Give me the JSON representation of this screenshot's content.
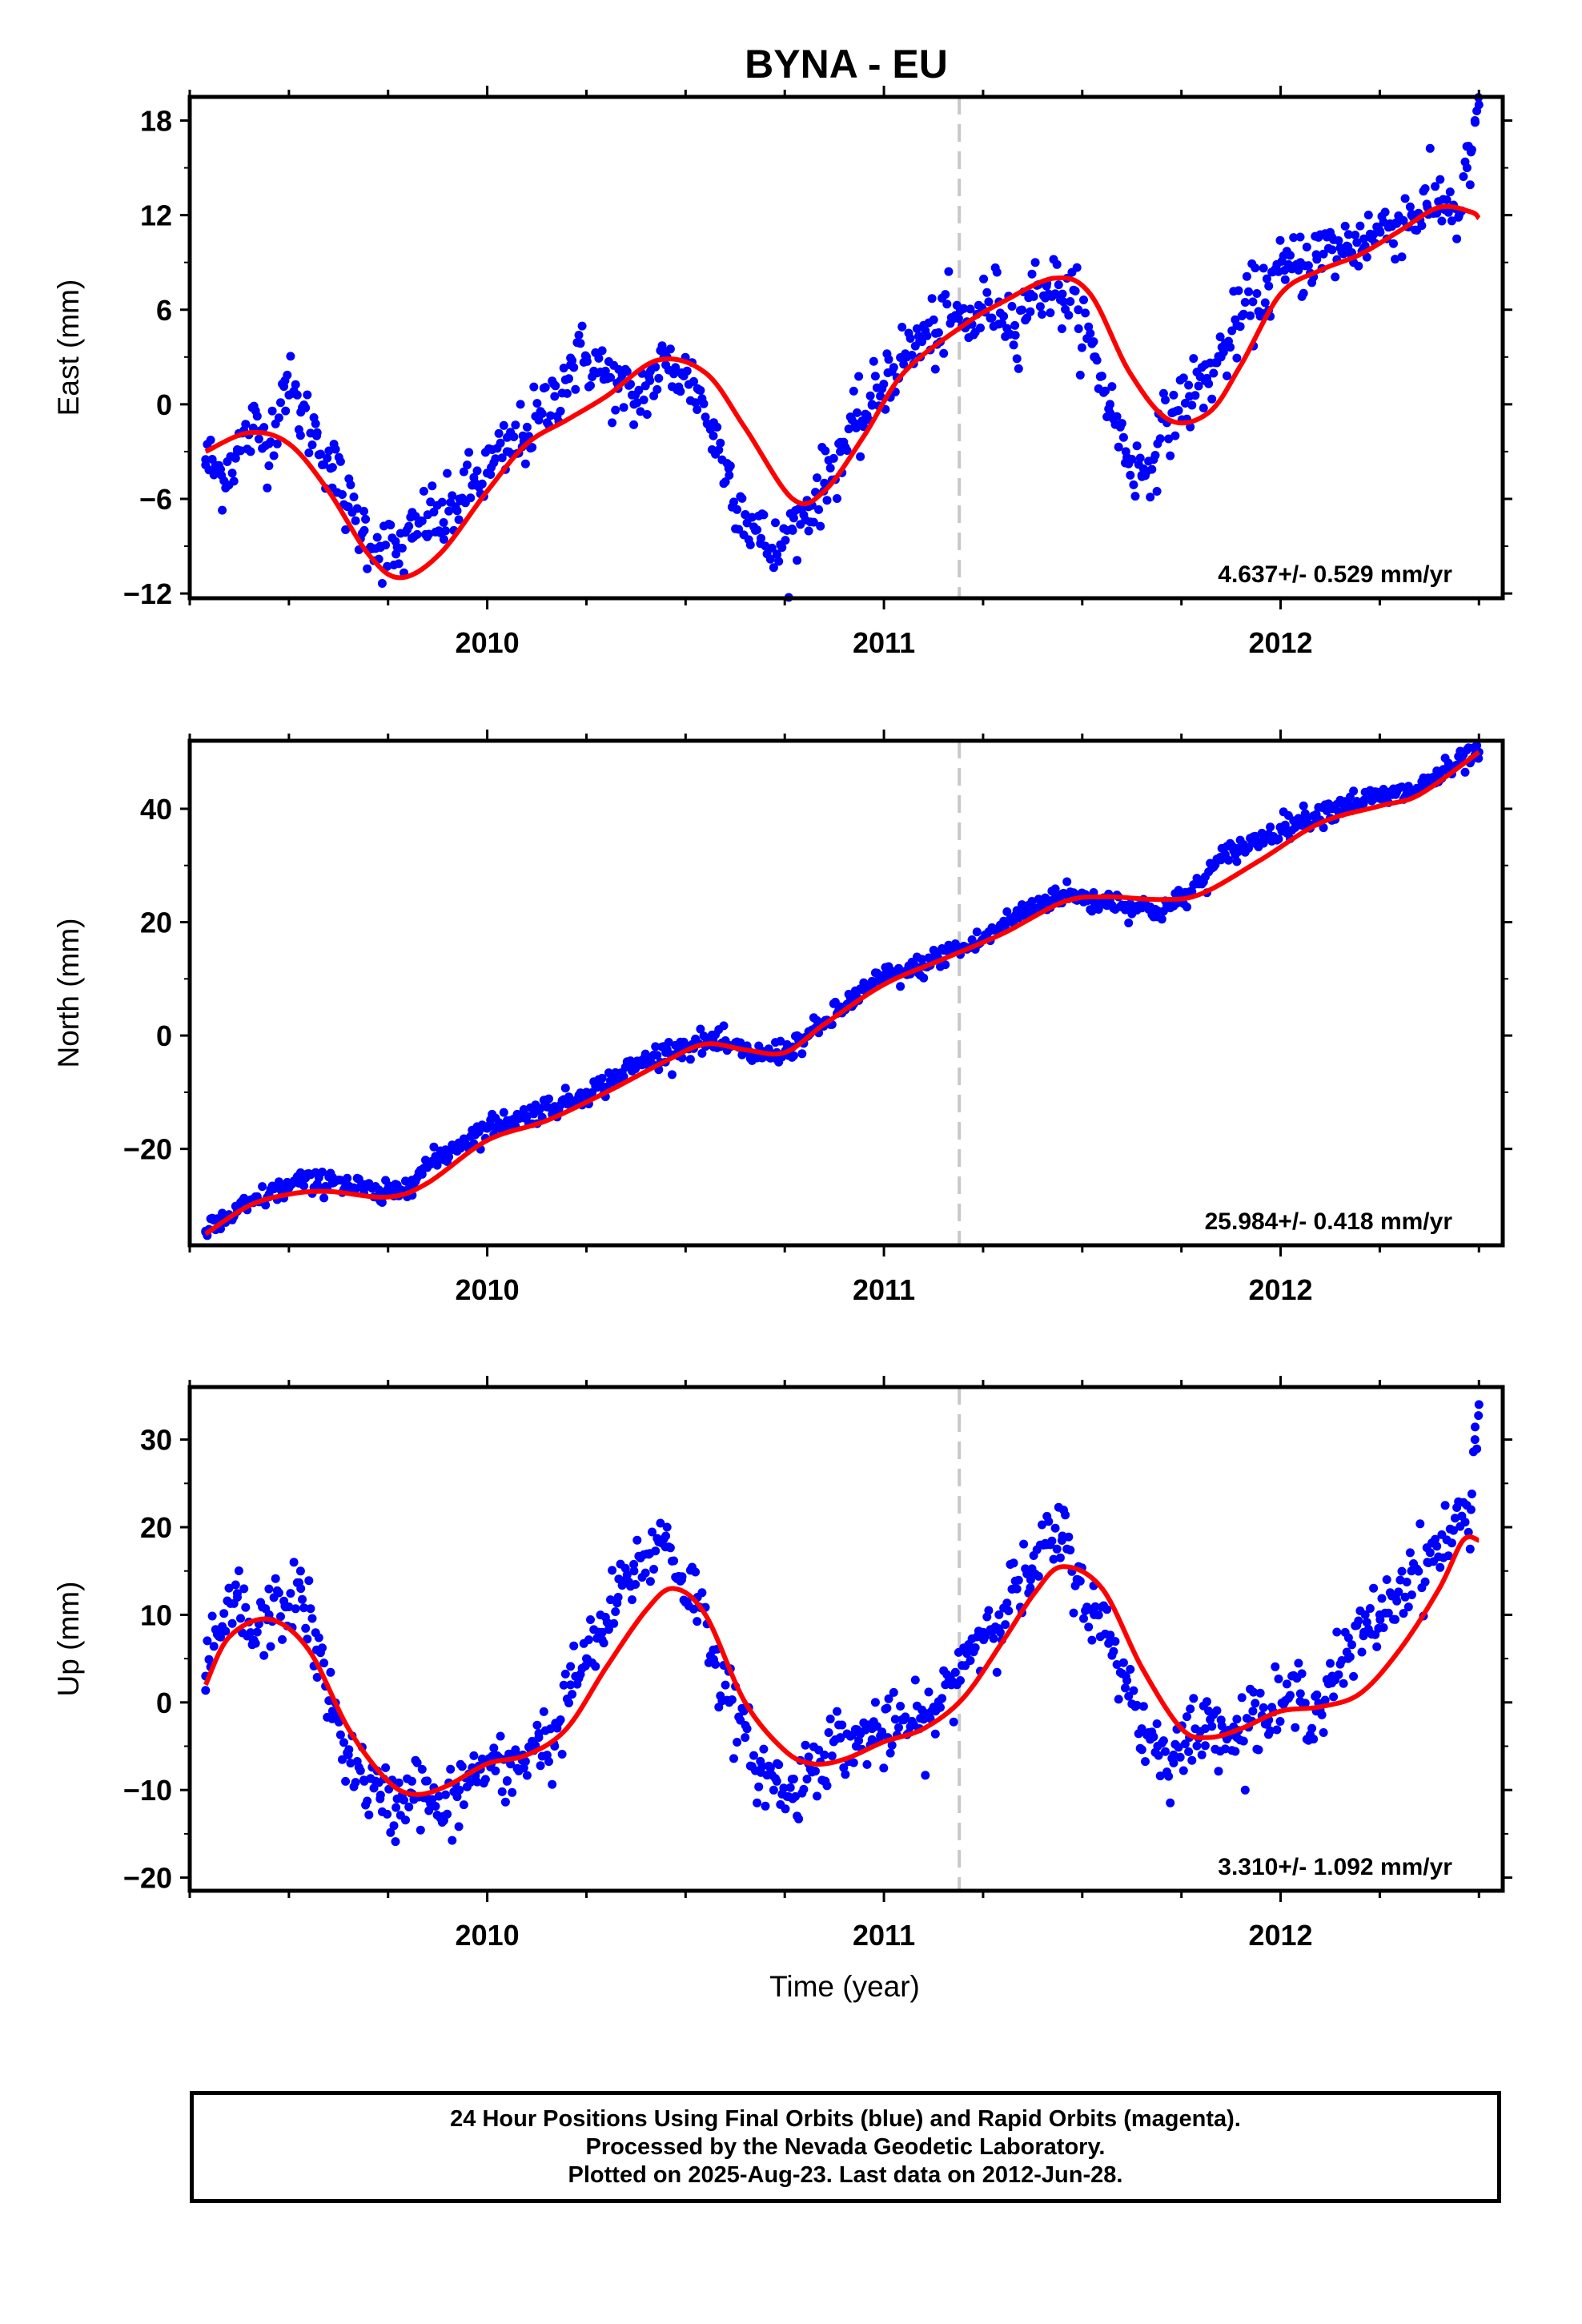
{
  "figure": {
    "title": "BYNA - EU",
    "x_axis_label": "Time (year)",
    "colors": {
      "data": "#0000ff",
      "model": "#ff0000",
      "marker_line": "#c8c8c8",
      "frame": "#000000"
    }
  },
  "chart_data": [
    {
      "type": "scatter",
      "component": "East",
      "ylabel": "East (mm)",
      "xlim": [
        2009.25,
        2012.56
      ],
      "ylim": [
        -12.3,
        19.5
      ],
      "yticks": [
        -12,
        -6,
        0,
        6,
        12,
        18
      ],
      "xticks": [
        2010,
        2011,
        2012
      ],
      "vertical_marker_x": 2011.19,
      "rate_label": "4.637+/- 0.529 mm/yr",
      "series": [
        {
          "kind": "points",
          "x": [
            2009.29,
            2009.33,
            2009.37,
            2009.41,
            2009.45,
            2009.49,
            2009.53,
            2009.57,
            2009.61,
            2009.65,
            2009.69,
            2009.73,
            2009.77,
            2009.81,
            2009.85,
            2009.89,
            2009.93,
            2009.97,
            2010.01,
            2010.05,
            2010.09,
            2010.13,
            2010.17,
            2010.21,
            2010.25,
            2010.29,
            2010.33,
            2010.37,
            2010.41,
            2010.45,
            2010.49,
            2010.53,
            2010.57,
            2010.61,
            2010.65,
            2010.69,
            2010.73,
            2010.77,
            2010.81,
            2010.85,
            2010.89,
            2010.93,
            2010.97,
            2011.01,
            2011.05,
            2011.09,
            2011.13,
            2011.17,
            2011.21,
            2011.25,
            2011.29,
            2011.33,
            2011.37,
            2011.41,
            2011.45,
            2011.49,
            2011.53,
            2011.57,
            2011.61,
            2011.65,
            2011.69,
            2011.73,
            2011.77,
            2011.81,
            2011.85,
            2011.89,
            2011.93,
            2011.97,
            2012.01,
            2012.05,
            2012.09,
            2012.13,
            2012.17,
            2012.21,
            2012.25,
            2012.29,
            2012.33,
            2012.37,
            2012.41,
            2012.45,
            2012.47,
            2012.48,
            2012.49,
            2012.5
          ],
          "y": [
            -3.5,
            -4.5,
            -3.0,
            -1.5,
            -2.5,
            1.5,
            -0.5,
            -2.0,
            -4.0,
            -6.5,
            -8.0,
            -9.0,
            -9.5,
            -8.5,
            -7.0,
            -7.5,
            -6.0,
            -5.0,
            -4.0,
            -3.0,
            -2.0,
            -1.0,
            0.5,
            2.5,
            3.0,
            2.0,
            1.0,
            0.0,
            1.5,
            2.5,
            2.0,
            1.0,
            -2.0,
            -4.5,
            -7.0,
            -8.5,
            -9.5,
            -8.0,
            -6.5,
            -5.0,
            -3.0,
            -1.5,
            0.0,
            2.0,
            3.0,
            4.0,
            4.5,
            5.5,
            5.0,
            6.0,
            6.5,
            5.0,
            7.0,
            7.5,
            7.0,
            6.0,
            3.0,
            0.0,
            -3.0,
            -4.5,
            -2.5,
            -0.5,
            0.5,
            1.5,
            3.0,
            5.0,
            6.5,
            7.5,
            8.5,
            9.0,
            9.5,
            9.8,
            10.0,
            10.5,
            11.0,
            11.5,
            12.0,
            12.5,
            13.0,
            12.0,
            15.0,
            16.0,
            18.0,
            19.0
          ]
        },
        {
          "kind": "model",
          "x": [
            2009.29,
            2009.4,
            2009.5,
            2009.6,
            2009.7,
            2009.78,
            2009.88,
            2010.0,
            2010.1,
            2010.2,
            2010.3,
            2010.43,
            2010.55,
            2010.65,
            2010.77,
            2010.85,
            2010.95,
            2011.05,
            2011.2,
            2011.3,
            2011.43,
            2011.52,
            2011.62,
            2011.72,
            2011.82,
            2011.9,
            2012.0,
            2012.1,
            2012.2,
            2012.3,
            2012.4,
            2012.48,
            2012.5
          ],
          "y": [
            -3.0,
            -1.8,
            -2.5,
            -5.5,
            -9.5,
            -11.0,
            -9.5,
            -5.5,
            -2.5,
            -1.0,
            0.5,
            2.8,
            2.0,
            -1.5,
            -6.0,
            -5.5,
            -2.0,
            2.0,
            5.0,
            6.5,
            8.0,
            7.0,
            2.0,
            -1.0,
            -0.5,
            2.5,
            7.0,
            8.5,
            9.5,
            11.0,
            12.5,
            12.2,
            11.8
          ]
        }
      ]
    },
    {
      "type": "scatter",
      "component": "North",
      "ylabel": "North (mm)",
      "xlim": [
        2009.25,
        2012.56
      ],
      "ylim": [
        -37.0,
        52.0
      ],
      "yticks": [
        -20,
        0,
        20,
        40
      ],
      "xticks": [
        2010,
        2011,
        2012
      ],
      "vertical_marker_x": 2011.19,
      "rate_label": "25.984+/- 0.418 mm/yr",
      "series": [
        {
          "kind": "points",
          "x": [
            2009.29,
            2009.33,
            2009.37,
            2009.41,
            2009.45,
            2009.49,
            2009.53,
            2009.57,
            2009.61,
            2009.65,
            2009.69,
            2009.73,
            2009.77,
            2009.81,
            2009.85,
            2009.89,
            2009.93,
            2009.97,
            2010.01,
            2010.05,
            2010.09,
            2010.13,
            2010.17,
            2010.21,
            2010.25,
            2010.29,
            2010.33,
            2010.37,
            2010.41,
            2010.45,
            2010.49,
            2010.53,
            2010.57,
            2010.61,
            2010.65,
            2010.69,
            2010.73,
            2010.77,
            2010.81,
            2010.85,
            2010.89,
            2010.93,
            2010.97,
            2011.01,
            2011.05,
            2011.09,
            2011.13,
            2011.17,
            2011.21,
            2011.25,
            2011.29,
            2011.33,
            2011.37,
            2011.41,
            2011.45,
            2011.49,
            2011.53,
            2011.57,
            2011.61,
            2011.65,
            2011.69,
            2011.73,
            2011.77,
            2011.81,
            2011.85,
            2011.89,
            2011.93,
            2011.97,
            2012.01,
            2012.05,
            2012.09,
            2012.13,
            2012.17,
            2012.21,
            2012.25,
            2012.29,
            2012.33,
            2012.49,
            2012.5
          ],
          "y": [
            -34.5,
            -33.0,
            -31.0,
            -29.5,
            -28.0,
            -27.0,
            -25.5,
            -26.5,
            -25.0,
            -26.5,
            -27.0,
            -28.5,
            -27.5,
            -25.5,
            -23.0,
            -21.0,
            -19.0,
            -17.5,
            -16.0,
            -15.0,
            -14.5,
            -13.0,
            -12.5,
            -11.5,
            -10.0,
            -9.0,
            -7.0,
            -5.5,
            -4.0,
            -3.0,
            -2.0,
            -1.5,
            -1.0,
            -2.0,
            -3.0,
            -3.5,
            -3.0,
            -2.0,
            0.0,
            2.0,
            4.5,
            7.0,
            9.0,
            10.5,
            11.0,
            12.0,
            13.5,
            15.0,
            15.5,
            17.0,
            19.0,
            21.0,
            22.5,
            24.0,
            25.0,
            24.5,
            23.5,
            24.0,
            23.0,
            22.5,
            22.0,
            23.0,
            25.0,
            28.0,
            31.0,
            33.0,
            34.0,
            35.5,
            37.0,
            38.0,
            39.0,
            40.0,
            41.0,
            41.5,
            42.0,
            42.5,
            43.0,
            49.5,
            50.0
          ]
        },
        {
          "kind": "model",
          "x": [
            2009.29,
            2009.4,
            2009.5,
            2009.6,
            2009.75,
            2009.85,
            2010.0,
            2010.15,
            2010.3,
            2010.45,
            2010.55,
            2010.65,
            2010.75,
            2010.85,
            2011.0,
            2011.15,
            2011.3,
            2011.45,
            2011.55,
            2011.7,
            2011.8,
            2011.95,
            2012.1,
            2012.25,
            2012.35,
            2012.5
          ],
          "y": [
            -35.0,
            -30.0,
            -28.0,
            -27.5,
            -28.5,
            -26.0,
            -18.5,
            -15.0,
            -10.0,
            -4.5,
            -1.5,
            -2.5,
            -3.0,
            2.0,
            9.0,
            13.5,
            18.0,
            23.5,
            24.5,
            24.0,
            25.0,
            31.0,
            37.5,
            40.5,
            42.5,
            50.0
          ]
        }
      ]
    },
    {
      "type": "scatter",
      "component": "Up",
      "ylabel": "Up (mm)",
      "xlim": [
        2009.25,
        2012.56
      ],
      "ylim": [
        -21.5,
        36.0
      ],
      "yticks": [
        -20,
        -10,
        0,
        10,
        20,
        30
      ],
      "xticks": [
        2010,
        2011,
        2012
      ],
      "vertical_marker_x": 2011.19,
      "rate_label": "3.310+/- 1.092 mm/yr",
      "series": [
        {
          "kind": "points",
          "x": [
            2009.29,
            2009.33,
            2009.37,
            2009.41,
            2009.45,
            2009.49,
            2009.53,
            2009.57,
            2009.61,
            2009.65,
            2009.69,
            2009.73,
            2009.77,
            2009.81,
            2009.85,
            2009.89,
            2009.93,
            2009.97,
            2010.01,
            2010.05,
            2010.09,
            2010.13,
            2010.17,
            2010.21,
            2010.25,
            2010.29,
            2010.33,
            2010.37,
            2010.41,
            2010.45,
            2010.49,
            2010.53,
            2010.57,
            2010.61,
            2010.65,
            2010.69,
            2010.73,
            2010.77,
            2010.81,
            2010.85,
            2010.89,
            2010.93,
            2010.97,
            2011.01,
            2011.05,
            2011.09,
            2011.13,
            2011.17,
            2011.21,
            2011.25,
            2011.29,
            2011.33,
            2011.37,
            2011.41,
            2011.45,
            2011.49,
            2011.53,
            2011.57,
            2011.61,
            2011.65,
            2011.69,
            2011.73,
            2011.77,
            2011.81,
            2011.85,
            2011.89,
            2011.93,
            2011.97,
            2012.01,
            2012.05,
            2012.09,
            2012.13,
            2012.17,
            2012.21,
            2012.25,
            2012.29,
            2012.33,
            2012.37,
            2012.48,
            2012.49,
            2012.5
          ],
          "y": [
            3.0,
            8.0,
            12.0,
            7.0,
            10.0,
            11.0,
            13.0,
            6.0,
            -1.0,
            -6.0,
            -9.0,
            -11.0,
            -12.0,
            -9.0,
            -11.0,
            -13.0,
            -10.0,
            -8.0,
            -7.0,
            -9.0,
            -6.0,
            -4.0,
            -5.0,
            2.0,
            5.0,
            8.0,
            12.0,
            15.0,
            17.0,
            19.0,
            14.0,
            12.0,
            6.0,
            0.0,
            -4.0,
            -8.0,
            -9.0,
            -11.0,
            -7.0,
            -6.0,
            -4.0,
            -5.0,
            -3.0,
            -4.0,
            -2.0,
            -3.0,
            -1.0,
            2.0,
            6.0,
            8.0,
            10.0,
            13.0,
            14.0,
            18.0,
            19.0,
            14.0,
            10.0,
            7.0,
            3.0,
            -3.0,
            -5.0,
            -6.0,
            -4.0,
            -3.0,
            -2.0,
            -4.0,
            -1.0,
            -2.0,
            0.0,
            1.0,
            -1.0,
            3.0,
            5.0,
            8.0,
            10.0,
            12.0,
            15.0,
            16.0,
            22.0,
            30.0,
            34.0
          ]
        },
        {
          "kind": "model",
          "x": [
            2009.29,
            2009.35,
            2009.45,
            2009.55,
            2009.65,
            2009.75,
            2009.82,
            2009.9,
            2010.0,
            2010.1,
            2010.2,
            2010.3,
            2010.4,
            2010.47,
            2010.55,
            2010.65,
            2010.75,
            2010.82,
            2010.9,
            2011.0,
            2011.1,
            2011.2,
            2011.3,
            2011.38,
            2011.45,
            2011.55,
            2011.65,
            2011.75,
            2011.82,
            2011.9,
            2012.0,
            2012.1,
            2012.2,
            2012.3,
            2012.4,
            2012.46,
            2012.5
          ],
          "y": [
            2.0,
            7.5,
            9.5,
            6.0,
            -3.0,
            -9.0,
            -10.5,
            -9.5,
            -7.0,
            -6.0,
            -3.0,
            4.0,
            10.5,
            13.0,
            10.0,
            0.0,
            -5.5,
            -7.0,
            -6.5,
            -4.5,
            -3.0,
            0.5,
            7.0,
            12.5,
            15.5,
            13.0,
            4.0,
            -3.0,
            -4.0,
            -3.0,
            -1.0,
            -0.5,
            1.0,
            6.0,
            13.0,
            18.5,
            18.5
          ]
        }
      ]
    }
  ],
  "caption": {
    "line1": "24 Hour Positions Using Final Orbits (blue) and Rapid Orbits (magenta).",
    "line2": "Processed by the Nevada Geodetic Laboratory.",
    "line3": "Plotted on 2025-Aug-23. Last data on 2012-Jun-28."
  }
}
